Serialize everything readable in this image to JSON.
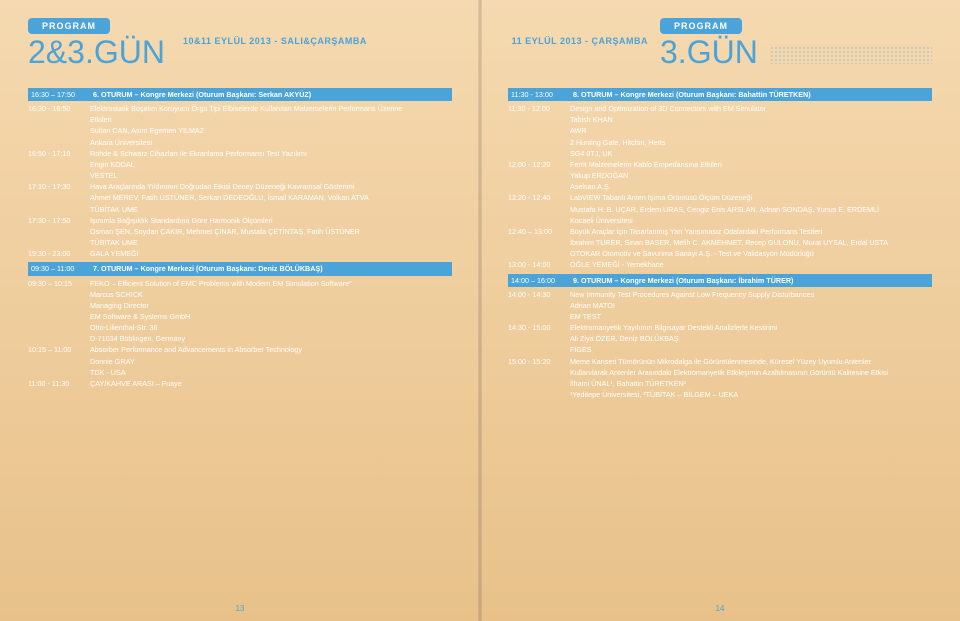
{
  "colors": {
    "accent": "#4aa3d9",
    "text": "#ffffff",
    "bg_top": "#f5d9b0",
    "bg_bottom": "#e8c18a"
  },
  "left": {
    "program_label": "PROGRAM",
    "day": "2&3.GÜN",
    "date": "10&11 EYLÜL 2013 - SALI&ÇARŞAMBA",
    "pagenum": "13",
    "rows": [
      {
        "type": "head",
        "time": "16:30 – 17:50",
        "text": "6. OTURUM – Kongre Merkezi (Oturum Başkanı: Serkan AKYÜZ)"
      },
      {
        "type": "item",
        "time": "16:30 - 16:50",
        "lines": [
          "Elektrostatik Boşalım Koruyucu Örgü Tipi Elbiselerde Kullanılan Malzemelerin Performans Üzerine",
          "Etkileri",
          "Sultan CAN, Asım Egemen YILMAZ",
          "Ankara Üniversitesi"
        ]
      },
      {
        "type": "item",
        "time": "16:50 - 17:10",
        "lines": [
          "Rohde & Schwarz Cihazları ile Ekranlama Performansı Test Yazılımı",
          "Engin KODAL",
          "VESTEL"
        ]
      },
      {
        "type": "item",
        "time": "17:10 - 17:30",
        "lines": [
          "Hava Araçlarında Yıldırımın Doğrudan Etkisi Deney Düzeneği Kavramsal Gösterimi",
          "Ahmet MEREV, Fatih ÜSTÜNER, Serkan DEDEOĞLU, İsmail KARAMAN, Volkan ATVA",
          "TÜBİTAK UME"
        ]
      },
      {
        "type": "item",
        "time": "17:30 - 17:50",
        "lines": [
          "Işınımla Bağışıklık Standardına Göre Harmonik Ölçümleri",
          "Osman ŞEN, Soydan ÇAKIR, Mehmet ÇINAR, Mustafa ÇETİNTAŞ, Fatih ÜSTÜNER",
          "TÜBİTAK UME"
        ]
      },
      {
        "type": "item",
        "time": "19:30 - 23:00",
        "lines": [
          "GALA YEMEĞİ"
        ]
      },
      {
        "type": "head",
        "time": "09:30 – 11:00",
        "text": "7. OTURUM – Kongre Merkezi (Oturum Başkanı: Deniz BÖLÜKBAŞ)"
      },
      {
        "type": "item",
        "time": "09:30 – 10:15",
        "lines": [
          "FEKO – Efficient Solution of EMC Problems with Modern EM Simulation Software\"",
          "Marcus SCHICK",
          "Managing Director",
          "EM Software & Systems GmbH",
          "Otto-Lilienthal-Str. 36",
          "D-71034 Böblingen, Germany"
        ]
      },
      {
        "type": "item",
        "time": "10:15 – 11:00",
        "lines": [
          "Absorber Performance and Advancements in Absorber Technology",
          "Donnie GRAY",
          "TDK - USA"
        ]
      },
      {
        "type": "item",
        "time": "11:00 - 11:30",
        "lines": [
          "ÇAY/KAHVE ARASI – Fuaye"
        ]
      }
    ]
  },
  "right": {
    "program_label": "PROGRAM",
    "day": "3.GÜN",
    "date": "11 EYLÜL 2013 - ÇARŞAMBA",
    "pagenum": "14",
    "rows": [
      {
        "type": "head",
        "time": "11:30 - 13:00",
        "text": "8. OTURUM – Kongre Merkezi (Oturum Başkanı: Bahattin TÜRETKEN)"
      },
      {
        "type": "item",
        "time": "11:30 - 12:00",
        "lines": [
          "Design and Optimization of 3D Connectors with EM Simulator",
          "Tabish KHAN",
          "AWR",
          "2 Hunting Gate, Hitchin, Herts",
          "SG4 0TJ, UK"
        ]
      },
      {
        "type": "item",
        "time": "12:00 - 12:20",
        "lines": [
          "Ferrit Malzemelerin Kablo Empedansına Etkileri",
          "Yakup ERDOĞAN",
          "Aselsan A.Ş."
        ]
      },
      {
        "type": "item",
        "time": "12:20 - 12:40",
        "lines": [
          "LabVIEW Tabanlı Anten Işıma Örüntüsü Ölçüm Düzeneği",
          "Mustafa H. B. UÇAR, Erdem URAS, Cengiz Enis ARSLAN, Adnan SONDAŞ, Yunus E. ERDEMLİ",
          "Kocaeli Üniversitesi"
        ]
      },
      {
        "type": "item",
        "time": "12:40 – 13:00",
        "lines": [
          "Büyük Araçlar İçin Tasarlanmış Yarı Yansımasız Odalardaki Performans Testleri",
          "İbrahim TURER, Sinan BASER, Melih C. AKMEHMET, Recep GULONU, Murat UYSAL, Erdal USTA",
          "OTOKAR Otomotiv ve Savunma Sanayi A.Ş. - Test ve Validasyon Müdürlüğü"
        ]
      },
      {
        "type": "item",
        "time": "13:00 - 14:00",
        "lines": [
          "ÖĞLE YEMEĞİ - Yemekhane"
        ]
      },
      {
        "type": "head",
        "time": "14:00 – 16:00",
        "text": "9. OTURUM – Kongre Merkezi (Oturum Başkanı: İbrahim TÜRER)"
      },
      {
        "type": "item",
        "time": "14:00 - 14:30",
        "lines": [
          "New Immunity Test Procedures Against Low Frequency Supply Disturbances",
          "Adrian MATOI",
          "EM TEST"
        ]
      },
      {
        "type": "item",
        "time": "14:30 - 15:00",
        "lines": [
          "Elektromanyetik Yayılımın Bilgisayar Destekli Analizlerle Kestirimi",
          "Ali Ziya ÖZER, Deniz BÖLÜKBAŞ",
          "FIGES"
        ]
      },
      {
        "type": "item",
        "time": "15:00 - 15:20",
        "lines": [
          "Meme Kanseri Tümörünün Mikrodalga ile Görüntülenmesinde, Küresel Yüzey Uyumlu Antenler",
          "Kullanılarak Antenler Arasındaki Elektromanyetik Etkileşimin Azaltılmasının Görüntü Kalitesine Etkisi",
          "İlhami ÜNAL¹,  Bahattin TÜRETKEN²",
          "¹Yeditepe Üniversitesi, ²TÜBİTAK – BİLGEM – UEKA"
        ]
      }
    ]
  }
}
